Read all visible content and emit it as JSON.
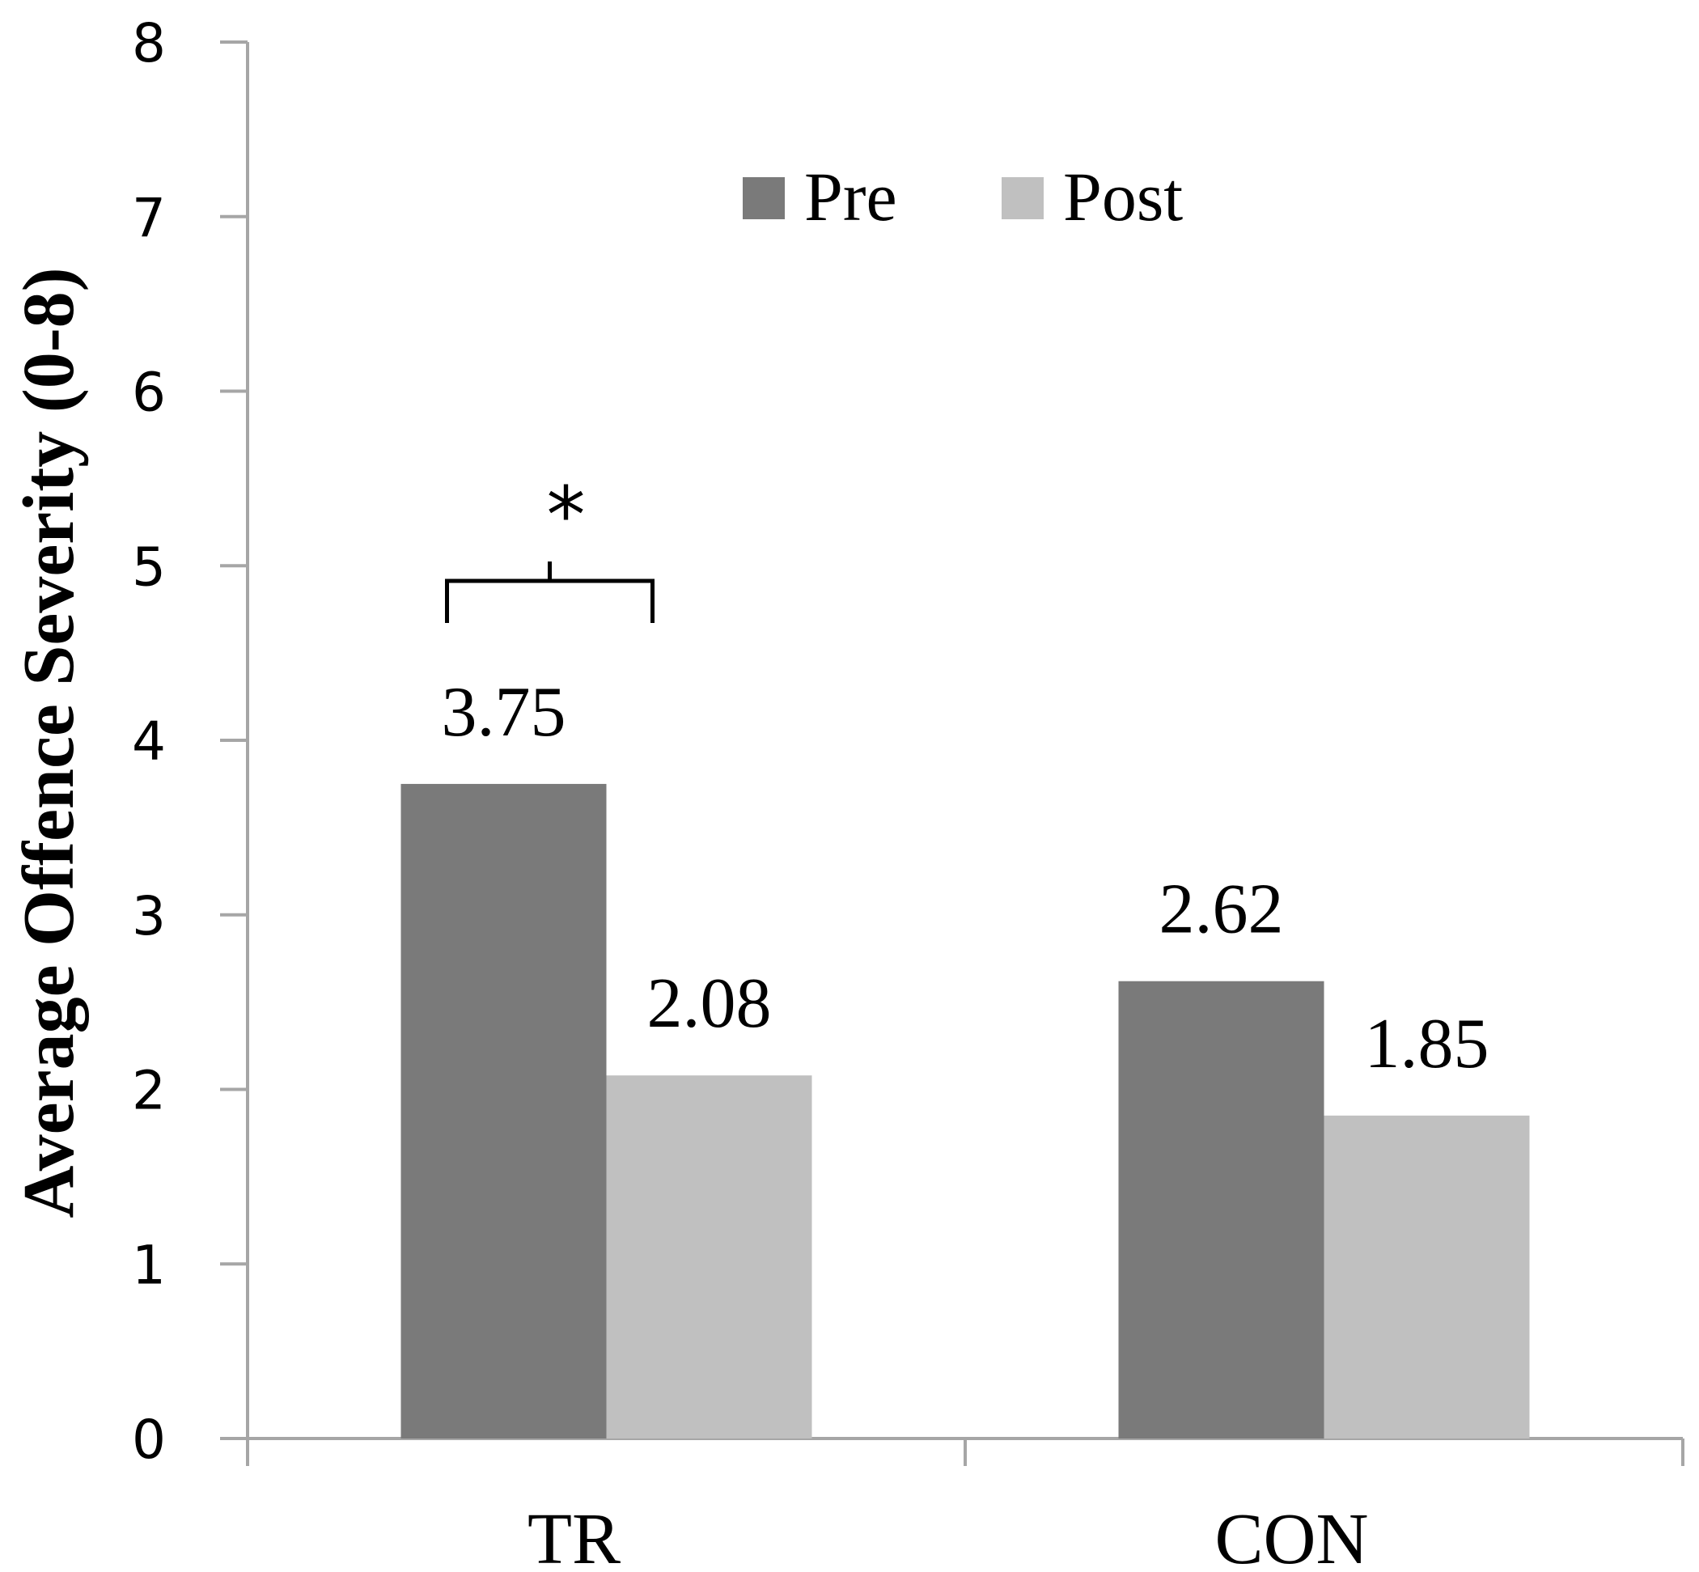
{
  "chart_data": {
    "type": "bar",
    "title": "",
    "xlabel": "",
    "ylabel": "Average Offence Severity (0-8)",
    "categories": [
      "TR",
      "CON"
    ],
    "series": [
      {
        "name": "Pre",
        "values": [
          3.75,
          2.62
        ],
        "color": "#7a7a7a"
      },
      {
        "name": "Post",
        "values": [
          2.08,
          1.85
        ],
        "color": "#c0c0c0"
      }
    ],
    "data_labels": [
      [
        "3.75",
        "2.62"
      ],
      [
        "2.08",
        "1.85"
      ]
    ],
    "ylim": [
      0,
      8
    ],
    "yticks": [
      "0",
      "1",
      "2",
      "3",
      "4",
      "5",
      "6",
      "7",
      "8"
    ],
    "grid": false,
    "legend_position": "top-center",
    "annotations": [
      {
        "type": "significance-bracket",
        "text": "*",
        "category": "TR",
        "between": [
          "Pre",
          "Post"
        ]
      }
    ],
    "axis_color": "#a6a6a6"
  }
}
